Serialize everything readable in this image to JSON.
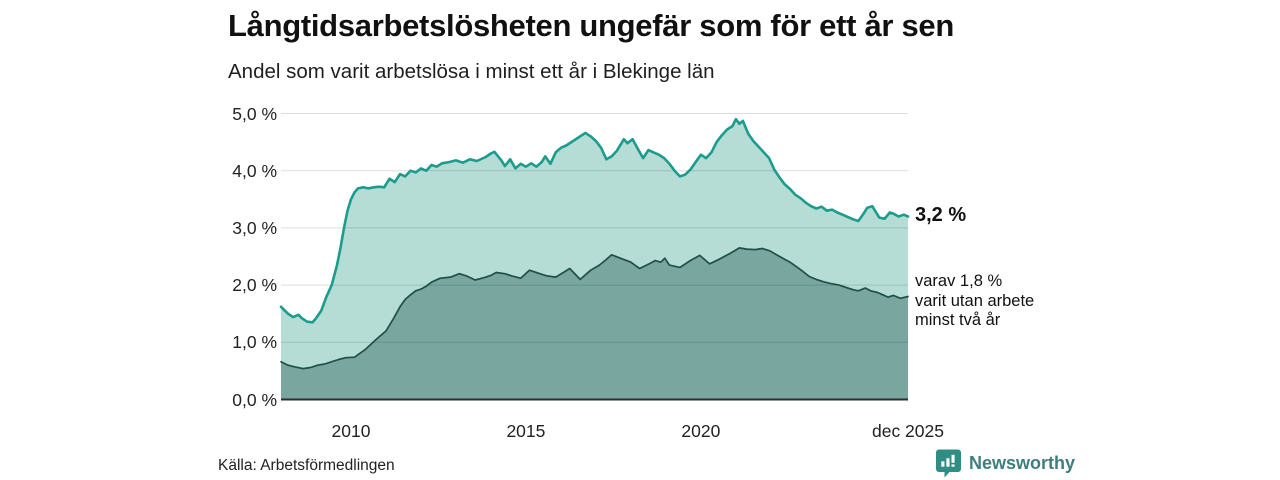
{
  "header": {
    "title": "Långtidsarbetslösheten ungefär som för ett år sen",
    "subtitle": "Andel som varit arbetslösa i minst ett år i Blekinge län"
  },
  "source": {
    "label": "Källa: Arbetsförmedlingen"
  },
  "branding": {
    "name": "Newsworthy"
  },
  "colors": {
    "accent_line": "#1b9c8c",
    "area_light": "#b6dcd6",
    "area_dark": "#79a69f",
    "dark_line": "#1f4f49",
    "grid": "rgba(0,0,0,0.13)",
    "baseline": "#2d2d2d",
    "text": "#222222",
    "brand": "#3e7e7c",
    "brand_icon": "#2f8d84"
  },
  "chart_data": {
    "type": "area",
    "title": "Långtidsarbetslösheten ungefär som för ett år sen",
    "subtitle": "Andel som varit arbetslösa i minst ett år i Blekinge län",
    "xlabel": "",
    "ylabel": "",
    "xlim": [
      2008.0,
      2025.92
    ],
    "ylim": [
      0,
      5
    ],
    "grid": true,
    "y_ticks": [
      {
        "v": 5,
        "label": "5,0 %"
      },
      {
        "v": 4,
        "label": "4,0 %"
      },
      {
        "v": 3,
        "label": "3,0 %"
      },
      {
        "v": 2,
        "label": "2,0 %"
      },
      {
        "v": 1,
        "label": "1,0 %"
      },
      {
        "v": 0,
        "label": "0,0 %"
      }
    ],
    "x_ticks": [
      {
        "t": 2010,
        "label": "2010"
      },
      {
        "t": 2015,
        "label": "2015"
      },
      {
        "t": 2020,
        "label": "2020"
      },
      {
        "t": 2025.92,
        "label": "dec 2025"
      }
    ],
    "end_labels": {
      "primary": "3,2 %",
      "secondary": [
        "varav 1,8 %",
        "varit utan arbete",
        "minst två år"
      ]
    },
    "series": [
      {
        "id": "arbetslosa-minst-ett-ar",
        "end_value": 3.2,
        "points": [
          [
            2008.0,
            1.62
          ],
          [
            2008.2,
            1.5
          ],
          [
            2008.35,
            1.44
          ],
          [
            2008.5,
            1.48
          ],
          [
            2008.6,
            1.42
          ],
          [
            2008.75,
            1.36
          ],
          [
            2008.9,
            1.35
          ],
          [
            2009.0,
            1.42
          ],
          [
            2009.15,
            1.55
          ],
          [
            2009.3,
            1.8
          ],
          [
            2009.45,
            2.0
          ],
          [
            2009.6,
            2.35
          ],
          [
            2009.7,
            2.65
          ],
          [
            2009.8,
            3.0
          ],
          [
            2009.9,
            3.3
          ],
          [
            2010.0,
            3.5
          ],
          [
            2010.1,
            3.62
          ],
          [
            2010.2,
            3.69
          ],
          [
            2010.35,
            3.71
          ],
          [
            2010.5,
            3.69
          ],
          [
            2010.65,
            3.71
          ],
          [
            2010.8,
            3.72
          ],
          [
            2010.95,
            3.71
          ],
          [
            2011.1,
            3.86
          ],
          [
            2011.25,
            3.8
          ],
          [
            2011.4,
            3.94
          ],
          [
            2011.55,
            3.9
          ],
          [
            2011.7,
            4.0
          ],
          [
            2011.85,
            3.97
          ],
          [
            2012.0,
            4.04
          ],
          [
            2012.15,
            4.0
          ],
          [
            2012.3,
            4.1
          ],
          [
            2012.45,
            4.07
          ],
          [
            2012.6,
            4.13
          ],
          [
            2012.8,
            4.15
          ],
          [
            2013.0,
            4.18
          ],
          [
            2013.2,
            4.14
          ],
          [
            2013.4,
            4.2
          ],
          [
            2013.6,
            4.17
          ],
          [
            2013.85,
            4.24
          ],
          [
            2014.0,
            4.3
          ],
          [
            2014.1,
            4.33
          ],
          [
            2014.3,
            4.18
          ],
          [
            2014.4,
            4.08
          ],
          [
            2014.55,
            4.2
          ],
          [
            2014.7,
            4.04
          ],
          [
            2014.85,
            4.12
          ],
          [
            2015.0,
            4.07
          ],
          [
            2015.15,
            4.13
          ],
          [
            2015.3,
            4.07
          ],
          [
            2015.45,
            4.15
          ],
          [
            2015.55,
            4.25
          ],
          [
            2015.7,
            4.12
          ],
          [
            2015.85,
            4.32
          ],
          [
            2016.0,
            4.4
          ],
          [
            2016.15,
            4.44
          ],
          [
            2016.3,
            4.5
          ],
          [
            2016.5,
            4.58
          ],
          [
            2016.7,
            4.66
          ],
          [
            2016.85,
            4.6
          ],
          [
            2017.0,
            4.52
          ],
          [
            2017.15,
            4.4
          ],
          [
            2017.3,
            4.2
          ],
          [
            2017.45,
            4.25
          ],
          [
            2017.6,
            4.35
          ],
          [
            2017.8,
            4.55
          ],
          [
            2017.9,
            4.48
          ],
          [
            2018.05,
            4.55
          ],
          [
            2018.2,
            4.38
          ],
          [
            2018.35,
            4.22
          ],
          [
            2018.5,
            4.36
          ],
          [
            2018.65,
            4.32
          ],
          [
            2018.8,
            4.28
          ],
          [
            2018.95,
            4.22
          ],
          [
            2019.1,
            4.12
          ],
          [
            2019.25,
            4.0
          ],
          [
            2019.4,
            3.9
          ],
          [
            2019.55,
            3.93
          ],
          [
            2019.7,
            4.02
          ],
          [
            2019.85,
            4.15
          ],
          [
            2020.0,
            4.28
          ],
          [
            2020.15,
            4.22
          ],
          [
            2020.3,
            4.32
          ],
          [
            2020.45,
            4.5
          ],
          [
            2020.6,
            4.62
          ],
          [
            2020.75,
            4.72
          ],
          [
            2020.9,
            4.78
          ],
          [
            2021.0,
            4.9
          ],
          [
            2021.1,
            4.82
          ],
          [
            2021.2,
            4.87
          ],
          [
            2021.35,
            4.65
          ],
          [
            2021.5,
            4.52
          ],
          [
            2021.65,
            4.42
          ],
          [
            2021.8,
            4.32
          ],
          [
            2021.95,
            4.22
          ],
          [
            2022.1,
            4.02
          ],
          [
            2022.25,
            3.88
          ],
          [
            2022.4,
            3.76
          ],
          [
            2022.55,
            3.68
          ],
          [
            2022.7,
            3.58
          ],
          [
            2022.85,
            3.52
          ],
          [
            2023.0,
            3.44
          ],
          [
            2023.15,
            3.38
          ],
          [
            2023.3,
            3.34
          ],
          [
            2023.45,
            3.37
          ],
          [
            2023.6,
            3.3
          ],
          [
            2023.75,
            3.32
          ],
          [
            2023.9,
            3.27
          ],
          [
            2024.05,
            3.23
          ],
          [
            2024.2,
            3.19
          ],
          [
            2024.35,
            3.15
          ],
          [
            2024.5,
            3.12
          ],
          [
            2024.65,
            3.25
          ],
          [
            2024.75,
            3.35
          ],
          [
            2024.9,
            3.38
          ],
          [
            2025.0,
            3.28
          ],
          [
            2025.1,
            3.18
          ],
          [
            2025.25,
            3.16
          ],
          [
            2025.4,
            3.27
          ],
          [
            2025.5,
            3.25
          ],
          [
            2025.65,
            3.2
          ],
          [
            2025.8,
            3.23
          ],
          [
            2025.92,
            3.2
          ]
        ]
      },
      {
        "id": "utan-arbete-minst-tva-ar",
        "end_value": 1.8,
        "points": [
          [
            2008.0,
            0.66
          ],
          [
            2008.2,
            0.6
          ],
          [
            2008.4,
            0.57
          ],
          [
            2008.63,
            0.54
          ],
          [
            2008.85,
            0.56
          ],
          [
            2009.05,
            0.6
          ],
          [
            2009.25,
            0.62
          ],
          [
            2009.45,
            0.66
          ],
          [
            2009.65,
            0.7
          ],
          [
            2009.85,
            0.73
          ],
          [
            2010.1,
            0.74
          ],
          [
            2010.4,
            0.87
          ],
          [
            2010.7,
            1.04
          ],
          [
            2011.0,
            1.2
          ],
          [
            2011.2,
            1.4
          ],
          [
            2011.4,
            1.62
          ],
          [
            2011.55,
            1.75
          ],
          [
            2011.7,
            1.83
          ],
          [
            2011.85,
            1.9
          ],
          [
            2012.0,
            1.93
          ],
          [
            2012.15,
            1.98
          ],
          [
            2012.3,
            2.05
          ],
          [
            2012.55,
            2.12
          ],
          [
            2012.85,
            2.14
          ],
          [
            2013.1,
            2.2
          ],
          [
            2013.3,
            2.16
          ],
          [
            2013.55,
            2.09
          ],
          [
            2013.8,
            2.13
          ],
          [
            2014.0,
            2.17
          ],
          [
            2014.15,
            2.22
          ],
          [
            2014.4,
            2.2
          ],
          [
            2014.6,
            2.16
          ],
          [
            2014.85,
            2.12
          ],
          [
            2015.1,
            2.26
          ],
          [
            2015.25,
            2.23
          ],
          [
            2015.4,
            2.2
          ],
          [
            2015.6,
            2.16
          ],
          [
            2015.85,
            2.14
          ],
          [
            2016.1,
            2.23
          ],
          [
            2016.25,
            2.29
          ],
          [
            2016.55,
            2.1
          ],
          [
            2016.85,
            2.26
          ],
          [
            2017.1,
            2.35
          ],
          [
            2017.3,
            2.45
          ],
          [
            2017.45,
            2.53
          ],
          [
            2017.7,
            2.47
          ],
          [
            2018.0,
            2.4
          ],
          [
            2018.25,
            2.29
          ],
          [
            2018.55,
            2.38
          ],
          [
            2018.7,
            2.43
          ],
          [
            2018.85,
            2.4
          ],
          [
            2018.97,
            2.47
          ],
          [
            2019.1,
            2.35
          ],
          [
            2019.4,
            2.31
          ],
          [
            2019.7,
            2.43
          ],
          [
            2019.97,
            2.52
          ],
          [
            2020.25,
            2.37
          ],
          [
            2020.55,
            2.46
          ],
          [
            2020.85,
            2.56
          ],
          [
            2021.1,
            2.65
          ],
          [
            2021.3,
            2.63
          ],
          [
            2021.55,
            2.62
          ],
          [
            2021.75,
            2.64
          ],
          [
            2021.97,
            2.6
          ],
          [
            2022.25,
            2.5
          ],
          [
            2022.55,
            2.4
          ],
          [
            2022.85,
            2.27
          ],
          [
            2023.1,
            2.15
          ],
          [
            2023.3,
            2.1
          ],
          [
            2023.5,
            2.06
          ],
          [
            2023.7,
            2.03
          ],
          [
            2023.95,
            2.0
          ],
          [
            2024.15,
            1.96
          ],
          [
            2024.35,
            1.92
          ],
          [
            2024.5,
            1.9
          ],
          [
            2024.7,
            1.95
          ],
          [
            2024.85,
            1.9
          ],
          [
            2025.05,
            1.87
          ],
          [
            2025.2,
            1.83
          ],
          [
            2025.35,
            1.79
          ],
          [
            2025.5,
            1.82
          ],
          [
            2025.7,
            1.77
          ],
          [
            2025.92,
            1.8
          ]
        ]
      }
    ]
  }
}
